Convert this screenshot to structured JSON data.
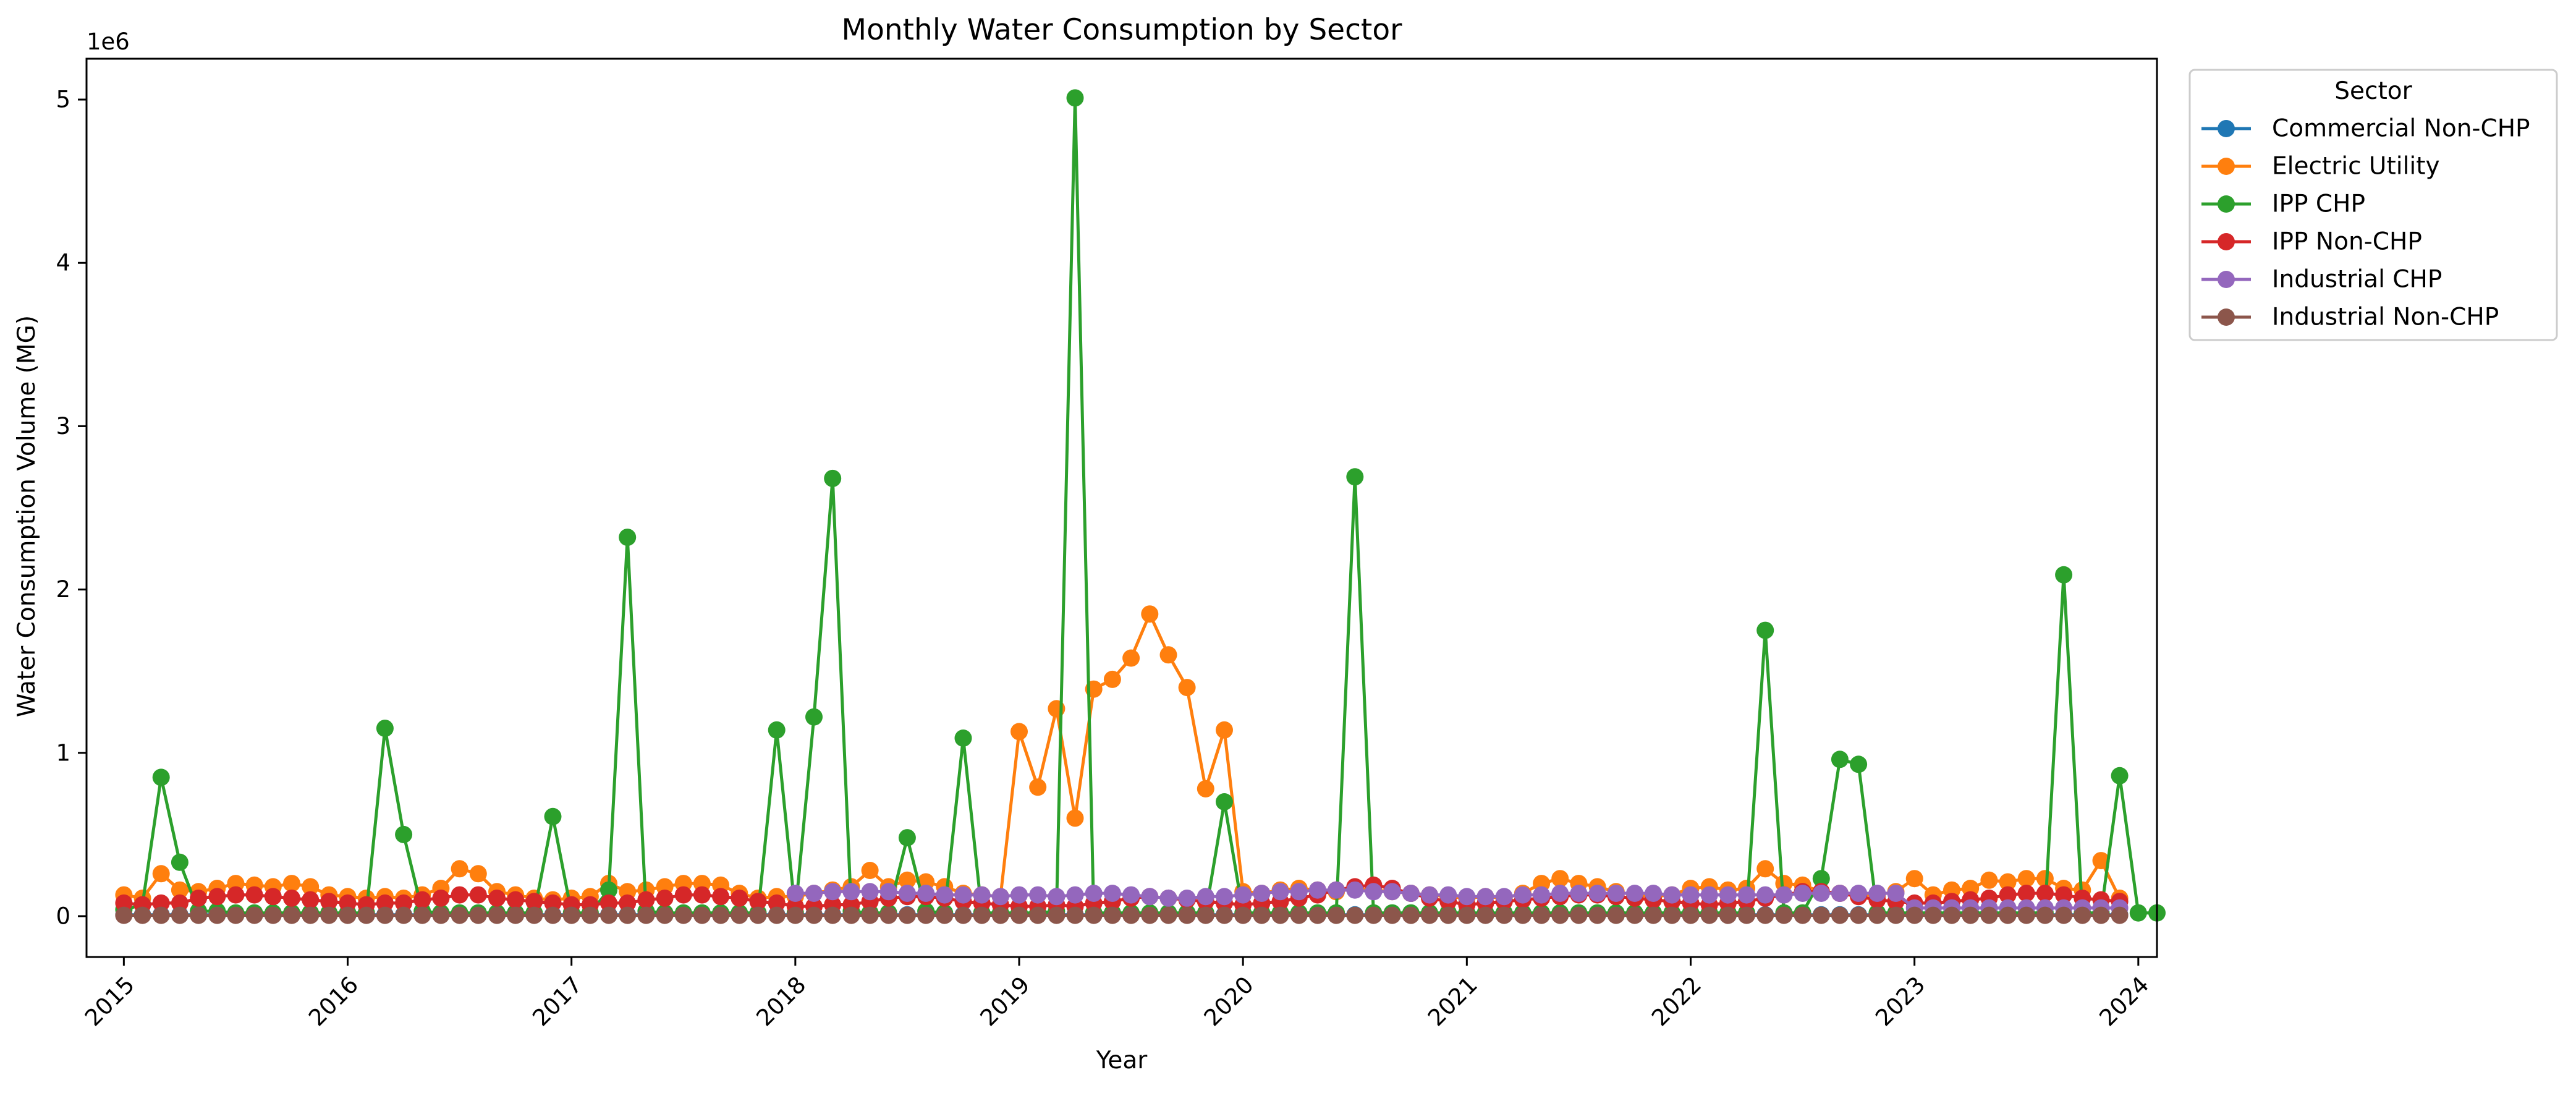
{
  "chart_data": {
    "type": "line",
    "title": "Monthly Water Consumption by Sector",
    "xlabel": "Year",
    "ylabel": "Water Consumption Volume (MG)",
    "y_offset_label": "1e6",
    "y_scale": 1000000,
    "xlim": [
      "2014-11-01",
      "2024-02-01"
    ],
    "ylim": [
      -250000,
      5250000
    ],
    "x_tick_labels": [
      "2015",
      "2016",
      "2017",
      "2018",
      "2019",
      "2020",
      "2021",
      "2022",
      "2023",
      "2024"
    ],
    "y_tick_labels": [
      "0",
      "1",
      "2",
      "3",
      "4",
      "5"
    ],
    "grid": false,
    "legend_title": "Sector",
    "legend_position": "outside-top-right",
    "series": [
      {
        "name": "Commercial Non-CHP",
        "color": "#1f77b4",
        "start": "2015-01",
        "values": [
          8000,
          8000,
          8000,
          8000,
          8000,
          8000,
          8000,
          8000,
          8000,
          8000,
          8000,
          8000,
          8000,
          8000,
          8000,
          8000,
          8000,
          8000,
          8000,
          8000,
          8000,
          8000,
          8000,
          8000,
          8000,
          8000,
          8000,
          8000,
          8000,
          8000,
          8000,
          8000,
          8000,
          8000,
          8000,
          8000,
          8000,
          8000,
          8000,
          8000,
          8000,
          8000,
          8000,
          8000,
          8000,
          8000,
          8000,
          8000,
          8000,
          8000,
          8000,
          8000,
          8000,
          8000,
          8000,
          8000,
          8000,
          8000,
          8000,
          8000,
          8000,
          8000,
          8000,
          8000,
          8000,
          8000,
          8000,
          8000,
          8000,
          8000,
          8000,
          8000,
          8000,
          8000,
          8000,
          8000,
          8000,
          8000,
          8000,
          8000,
          8000,
          8000,
          8000,
          8000,
          8000,
          8000,
          8000,
          8000,
          8000,
          8000,
          8000,
          8000,
          8000,
          8000,
          8000,
          8000,
          8000,
          8000,
          8000,
          8000,
          8000,
          8000,
          8000,
          8000,
          8000,
          8000,
          8000,
          8000
        ]
      },
      {
        "name": "Electric Utility",
        "color": "#ff7f0e",
        "start": "2015-01",
        "values": [
          130000,
          110000,
          260000,
          160000,
          150000,
          170000,
          200000,
          190000,
          180000,
          200000,
          180000,
          130000,
          120000,
          110000,
          120000,
          110000,
          130000,
          170000,
          290000,
          260000,
          150000,
          130000,
          110000,
          100000,
          110000,
          120000,
          200000,
          150000,
          160000,
          180000,
          200000,
          200000,
          190000,
          140000,
          110000,
          120000,
          120000,
          140000,
          160000,
          180000,
          280000,
          180000,
          220000,
          210000,
          180000,
          140000,
          130000,
          120000,
          1130000,
          790000,
          1270000,
          600000,
          1390000,
          1450000,
          1580000,
          1850000,
          1600000,
          1400000,
          780000,
          1140000,
          150000,
          140000,
          160000,
          170000,
          160000,
          150000,
          170000,
          160000,
          150000,
          140000,
          130000,
          120000,
          110000,
          120000,
          110000,
          140000,
          200000,
          230000,
          200000,
          180000,
          150000,
          130000,
          120000,
          130000,
          170000,
          180000,
          160000,
          170000,
          290000,
          200000,
          190000,
          150000,
          140000,
          130000,
          130000,
          150000,
          230000,
          130000,
          160000,
          170000,
          220000,
          210000,
          230000,
          230000,
          170000,
          160000,
          340000,
          110000
        ]
      },
      {
        "name": "IPP CHP",
        "color": "#2ca02c",
        "start": "2015-01",
        "values": [
          40000,
          70000,
          850000,
          330000,
          30000,
          30000,
          20000,
          20000,
          20000,
          20000,
          20000,
          20000,
          20000,
          20000,
          1150000,
          500000,
          30000,
          20000,
          20000,
          20000,
          20000,
          20000,
          20000,
          610000,
          20000,
          20000,
          160000,
          2320000,
          30000,
          20000,
          20000,
          20000,
          20000,
          20000,
          20000,
          1140000,
          20000,
          1220000,
          2680000,
          30000,
          20000,
          20000,
          480000,
          30000,
          20000,
          1090000,
          20000,
          20000,
          20000,
          20000,
          30000,
          5010000,
          20000,
          20000,
          20000,
          20000,
          20000,
          20000,
          20000,
          700000,
          20000,
          20000,
          20000,
          20000,
          20000,
          20000,
          2690000,
          20000,
          20000,
          20000,
          20000,
          20000,
          20000,
          20000,
          20000,
          20000,
          20000,
          20000,
          20000,
          20000,
          20000,
          20000,
          20000,
          20000,
          20000,
          20000,
          20000,
          20000,
          1750000,
          20000,
          20000,
          230000,
          960000,
          930000,
          20000,
          20000,
          20000,
          20000,
          20000,
          20000,
          20000,
          20000,
          20000,
          20000,
          2090000,
          20000,
          20000,
          860000,
          20000,
          20000
        ]
      },
      {
        "name": "IPP Non-CHP",
        "color": "#d62728",
        "start": "2015-01",
        "values": [
          80000,
          70000,
          80000,
          80000,
          110000,
          120000,
          130000,
          130000,
          120000,
          110000,
          100000,
          90000,
          80000,
          70000,
          80000,
          80000,
          100000,
          110000,
          130000,
          130000,
          110000,
          100000,
          90000,
          80000,
          70000,
          70000,
          80000,
          80000,
          100000,
          110000,
          130000,
          130000,
          120000,
          110000,
          90000,
          80000,
          60000,
          60000,
          70000,
          70000,
          90000,
          110000,
          120000,
          120000,
          110000,
          90000,
          80000,
          70000,
          60000,
          60000,
          70000,
          60000,
          80000,
          90000,
          110000,
          120000,
          110000,
          100000,
          90000,
          80000,
          70000,
          80000,
          90000,
          110000,
          130000,
          160000,
          180000,
          190000,
          170000,
          140000,
          110000,
          90000,
          70000,
          80000,
          90000,
          100000,
          110000,
          120000,
          130000,
          130000,
          120000,
          110000,
          100000,
          90000,
          80000,
          70000,
          80000,
          90000,
          110000,
          130000,
          150000,
          150000,
          140000,
          120000,
          100000,
          90000,
          80000,
          80000,
          90000,
          100000,
          110000,
          130000,
          140000,
          140000,
          130000,
          110000,
          100000,
          90000
        ]
      },
      {
        "name": "Industrial CHP",
        "color": "#9467bd",
        "start": "2018-01",
        "values": [
          140000,
          140000,
          150000,
          150000,
          150000,
          150000,
          140000,
          140000,
          130000,
          130000,
          130000,
          120000,
          130000,
          130000,
          120000,
          130000,
          140000,
          140000,
          130000,
          120000,
          110000,
          110000,
          120000,
          120000,
          130000,
          140000,
          150000,
          150000,
          160000,
          160000,
          160000,
          150000,
          150000,
          140000,
          130000,
          130000,
          120000,
          120000,
          120000,
          130000,
          130000,
          140000,
          140000,
          140000,
          140000,
          140000,
          140000,
          130000,
          130000,
          130000,
          130000,
          130000,
          130000,
          130000,
          140000,
          140000,
          140000,
          140000,
          140000,
          140000,
          50000,
          50000,
          50000,
          50000,
          50000,
          50000,
          50000,
          50000,
          50000,
          50000,
          50000,
          50000
        ]
      },
      {
        "name": "Industrial Non-CHP",
        "color": "#8c564b",
        "start": "2015-01",
        "values": [
          5000,
          5000,
          5000,
          5000,
          5000,
          5000,
          5000,
          5000,
          5000,
          5000,
          5000,
          5000,
          5000,
          5000,
          5000,
          5000,
          5000,
          5000,
          5000,
          5000,
          5000,
          5000,
          5000,
          5000,
          5000,
          5000,
          5000,
          5000,
          5000,
          5000,
          5000,
          5000,
          5000,
          5000,
          5000,
          5000,
          5000,
          5000,
          5000,
          5000,
          5000,
          5000,
          5000,
          5000,
          5000,
          5000,
          5000,
          5000,
          5000,
          5000,
          5000,
          5000,
          5000,
          5000,
          5000,
          5000,
          5000,
          5000,
          5000,
          5000,
          5000,
          5000,
          5000,
          5000,
          5000,
          5000,
          5000,
          5000,
          5000,
          5000,
          5000,
          5000,
          5000,
          5000,
          5000,
          5000,
          5000,
          5000,
          5000,
          5000,
          5000,
          5000,
          5000,
          5000,
          5000,
          5000,
          5000,
          5000,
          5000,
          5000,
          5000,
          5000,
          5000,
          5000,
          5000,
          5000,
          5000,
          5000,
          5000,
          5000,
          5000,
          5000,
          5000,
          5000,
          5000,
          5000,
          5000,
          5000
        ]
      }
    ]
  }
}
